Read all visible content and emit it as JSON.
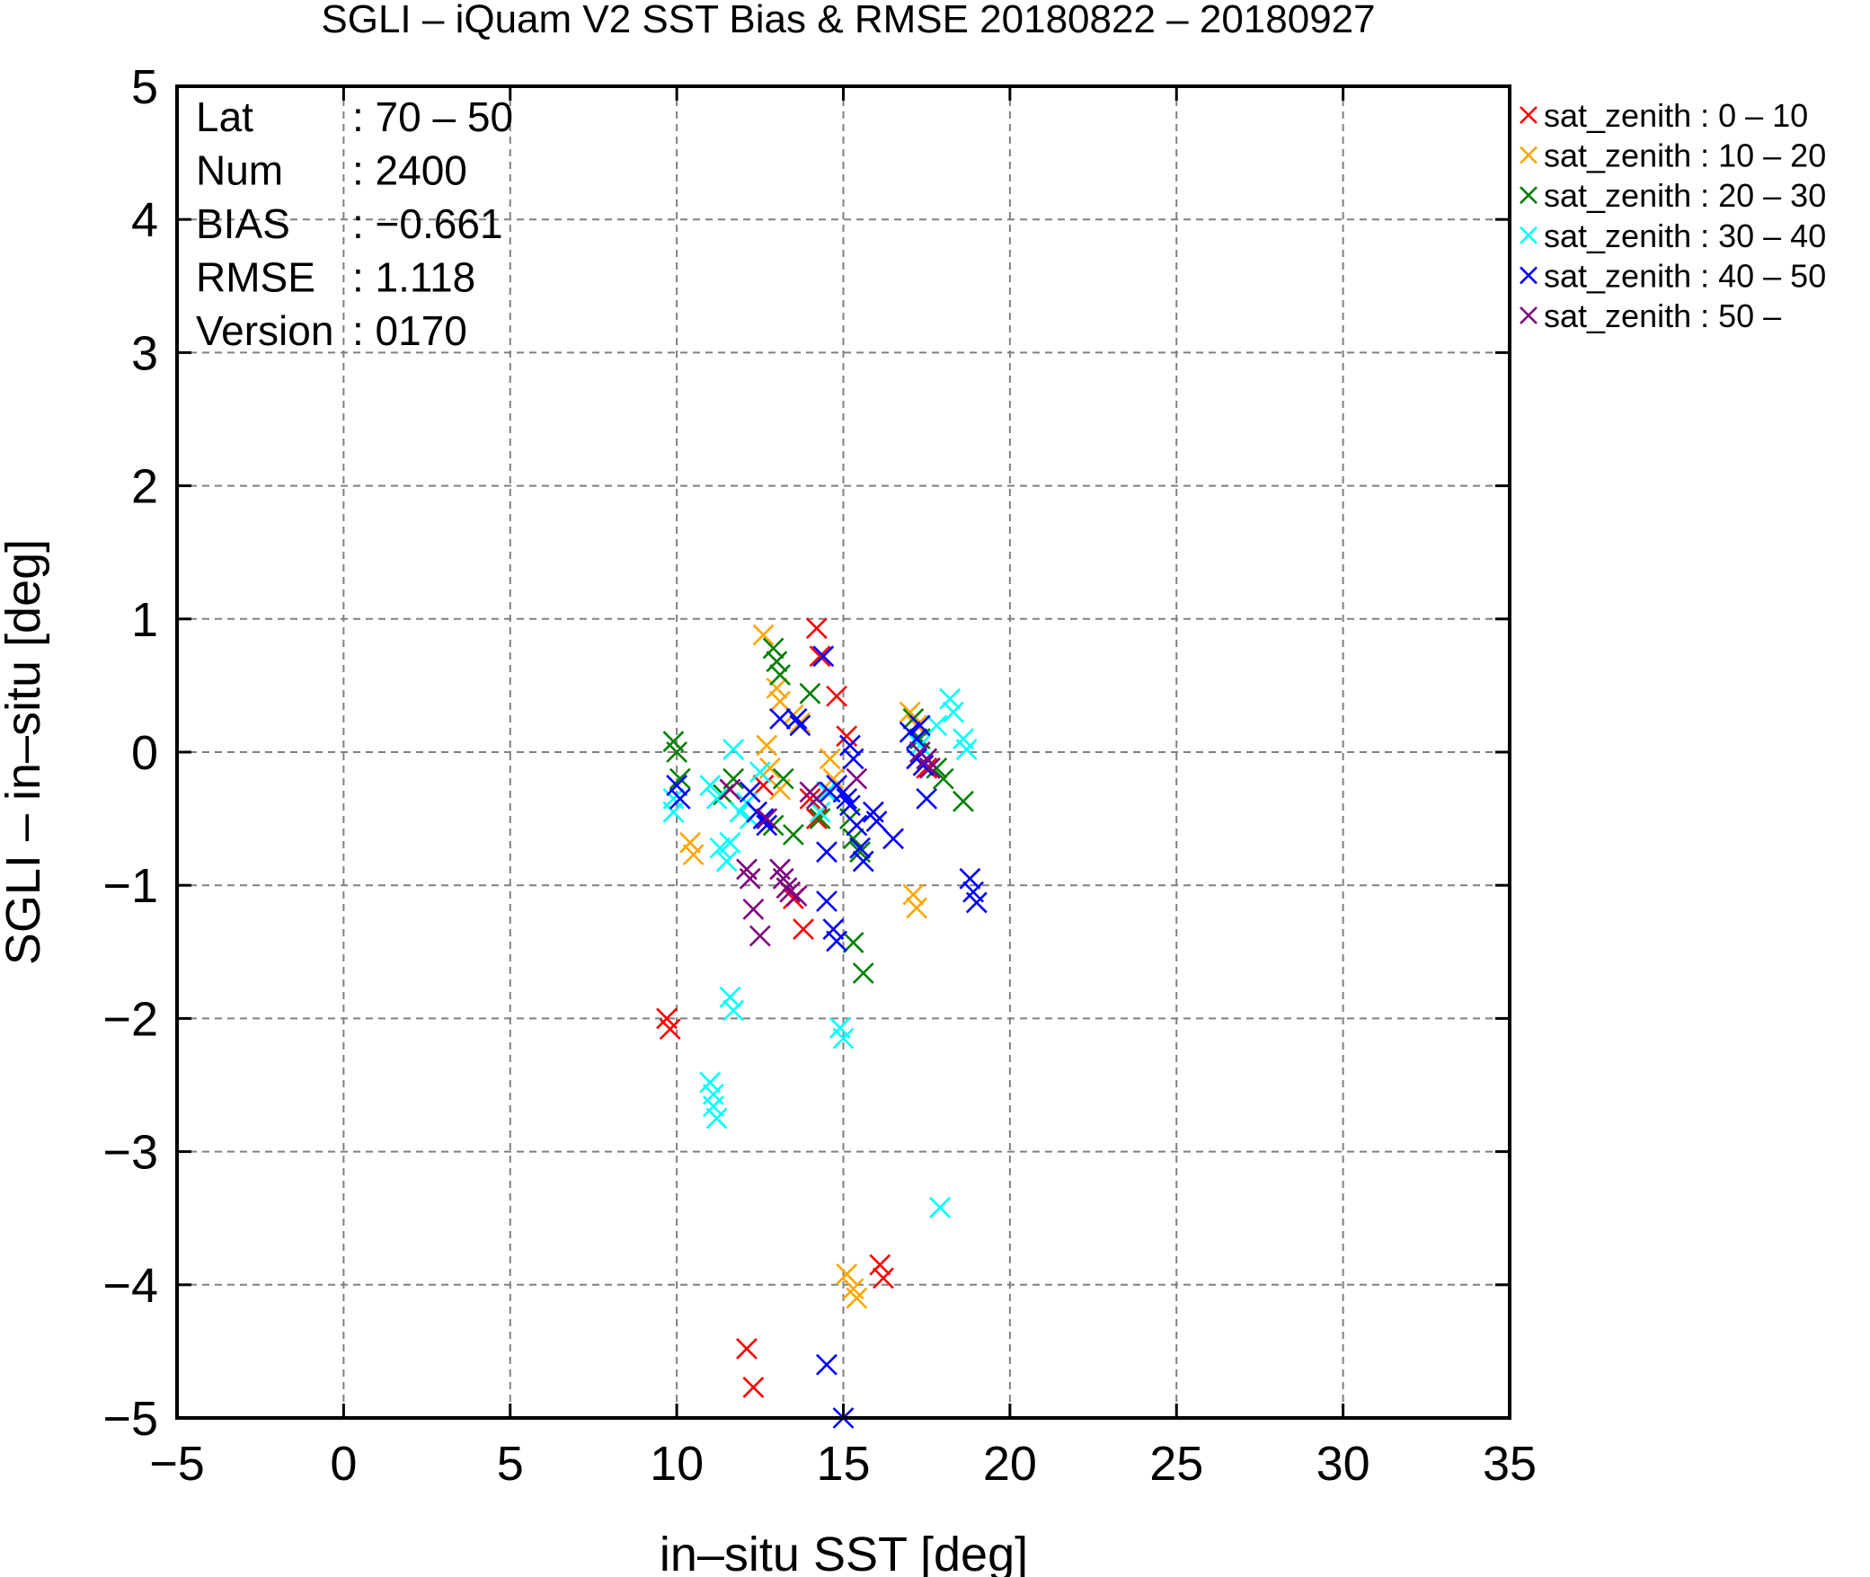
{
  "chart_data": {
    "type": "scatter",
    "title": "SGLI – iQuam V2 SST Bias & RMSE 20180822 – 20180927",
    "xlabel": "in–situ SST [deg]",
    "ylabel": "SGLI – in–situ [deg]",
    "xlim": [
      -5,
      35
    ],
    "ylim": [
      -5,
      5
    ],
    "x_ticks": [
      "−5",
      "0",
      "5",
      "10",
      "15",
      "20",
      "25",
      "30",
      "35"
    ],
    "y_ticks": [
      "5",
      "4",
      "3",
      "2",
      "1",
      "0",
      "−1",
      "−2",
      "−3",
      "−4",
      "−5"
    ],
    "grid": true,
    "legend_position": "outside-right",
    "marker": "x",
    "stats": {
      "labels": [
        "Lat",
        "Num",
        "BIAS",
        "RMSE",
        "Version"
      ],
      "values": [
        ": 70 – 50",
        ": 2400",
        ": −0.661",
        ": 1.118",
        ": 0170"
      ]
    },
    "series": [
      {
        "name": "sat_zenith :  0 – 10",
        "color": "#ff0000",
        "points": [
          [
            9.7,
            -2.0
          ],
          [
            9.8,
            -2.08
          ],
          [
            14.2,
            0.93
          ],
          [
            14.3,
            0.72
          ],
          [
            14.8,
            0.42
          ],
          [
            15.1,
            0.12
          ],
          [
            12.6,
            -0.25
          ],
          [
            11.6,
            -0.28
          ],
          [
            14.0,
            -0.35
          ],
          [
            14.2,
            -0.5
          ],
          [
            13.5,
            -1.1
          ],
          [
            13.8,
            -1.33
          ],
          [
            12.1,
            -4.48
          ],
          [
            12.3,
            -4.77
          ],
          [
            16.1,
            -3.85
          ],
          [
            16.2,
            -3.95
          ],
          [
            17.5,
            -0.12
          ]
        ]
      },
      {
        "name": "sat_zenith : 10 – 20",
        "color": "#ffa500",
        "points": [
          [
            12.6,
            0.88
          ],
          [
            13.0,
            0.48
          ],
          [
            13.1,
            0.38
          ],
          [
            13.5,
            0.28
          ],
          [
            13.7,
            0.22
          ],
          [
            12.7,
            0.05
          ],
          [
            12.8,
            -0.12
          ],
          [
            10.4,
            -0.68
          ],
          [
            10.5,
            -0.77
          ],
          [
            14.6,
            -0.05
          ],
          [
            14.7,
            -0.2
          ],
          [
            15.1,
            -3.92
          ],
          [
            15.3,
            -4.03
          ],
          [
            15.4,
            -4.1
          ],
          [
            17.0,
            0.3
          ],
          [
            17.2,
            0.2
          ],
          [
            17.1,
            -1.07
          ],
          [
            17.2,
            -1.17
          ],
          [
            13.1,
            -0.28
          ]
        ]
      },
      {
        "name": "sat_zenith : 20 – 30",
        "color": "#008000",
        "points": [
          [
            9.9,
            0.08
          ],
          [
            10.0,
            0.0
          ],
          [
            10.1,
            -0.2
          ],
          [
            12.9,
            0.78
          ],
          [
            13.0,
            0.68
          ],
          [
            13.1,
            0.58
          ],
          [
            14.0,
            0.44
          ],
          [
            11.7,
            -0.2
          ],
          [
            11.4,
            -0.32
          ],
          [
            12.9,
            -0.55
          ],
          [
            13.5,
            -0.62
          ],
          [
            15.2,
            -0.5
          ],
          [
            15.3,
            -0.65
          ],
          [
            15.5,
            -0.75
          ],
          [
            15.3,
            -1.43
          ],
          [
            15.6,
            -1.66
          ],
          [
            17.1,
            0.25
          ],
          [
            17.3,
            0.1
          ],
          [
            17.8,
            -0.12
          ],
          [
            18.0,
            -0.2
          ],
          [
            18.6,
            -0.37
          ],
          [
            14.3,
            -0.5
          ],
          [
            13.2,
            -0.2
          ]
        ]
      },
      {
        "name": "sat_zenith : 30 – 40",
        "color": "#00ffff",
        "points": [
          [
            9.9,
            -0.35
          ],
          [
            9.9,
            -0.45
          ],
          [
            11.0,
            -0.25
          ],
          [
            11.2,
            -0.35
          ],
          [
            11.3,
            -0.72
          ],
          [
            11.5,
            -0.82
          ],
          [
            11.6,
            -0.68
          ],
          [
            11.7,
            0.02
          ],
          [
            11.9,
            -0.45
          ],
          [
            12.1,
            -0.38
          ],
          [
            12.2,
            -0.5
          ],
          [
            11.6,
            -1.84
          ],
          [
            11.7,
            -1.94
          ],
          [
            11.0,
            -2.48
          ],
          [
            11.1,
            -2.57
          ],
          [
            11.1,
            -2.66
          ],
          [
            11.2,
            -2.75
          ],
          [
            14.3,
            -0.45
          ],
          [
            14.5,
            -0.3
          ],
          [
            14.9,
            -2.07
          ],
          [
            15.0,
            -2.15
          ],
          [
            17.9,
            -3.42
          ],
          [
            17.5,
            -0.05
          ],
          [
            17.8,
            0.2
          ],
          [
            18.2,
            0.4
          ],
          [
            18.3,
            0.3
          ],
          [
            18.6,
            0.1
          ],
          [
            18.7,
            0.02
          ],
          [
            17.3,
            0.05
          ],
          [
            12.5,
            -0.15
          ]
        ]
      },
      {
        "name": "sat_zenith : 40 – 50",
        "color": "#0000ff",
        "points": [
          [
            10.0,
            -0.25
          ],
          [
            10.1,
            -0.35
          ],
          [
            12.2,
            -0.3
          ],
          [
            12.4,
            -0.45
          ],
          [
            12.6,
            -0.5
          ],
          [
            12.7,
            -0.55
          ],
          [
            13.1,
            0.25
          ],
          [
            13.6,
            0.25
          ],
          [
            13.7,
            0.2
          ],
          [
            14.4,
            0.72
          ],
          [
            14.6,
            -0.3
          ],
          [
            14.8,
            -0.25
          ],
          [
            15.0,
            -0.3
          ],
          [
            15.1,
            -0.35
          ],
          [
            15.2,
            -0.4
          ],
          [
            15.2,
            0.05
          ],
          [
            15.3,
            -0.05
          ],
          [
            14.5,
            -0.75
          ],
          [
            14.5,
            -1.12
          ],
          [
            14.7,
            -1.33
          ],
          [
            14.8,
            -1.42
          ],
          [
            15.4,
            -0.55
          ],
          [
            15.5,
            -0.72
          ],
          [
            15.6,
            -0.82
          ],
          [
            15.9,
            -0.45
          ],
          [
            16.0,
            -0.52
          ],
          [
            16.5,
            -0.65
          ],
          [
            17.0,
            0.15
          ],
          [
            17.2,
            0.1
          ],
          [
            17.3,
            0.2
          ],
          [
            17.4,
            -0.1
          ],
          [
            17.5,
            -0.35
          ],
          [
            18.8,
            -0.95
          ],
          [
            18.9,
            -1.05
          ],
          [
            19.0,
            -1.13
          ],
          [
            14.5,
            -4.6
          ],
          [
            15.0,
            -5.0
          ],
          [
            17.2,
            -0.05
          ]
        ]
      },
      {
        "name": "sat_zenith : 50 –",
        "color": "#800080",
        "points": [
          [
            11.6,
            -0.28
          ],
          [
            12.1,
            -0.88
          ],
          [
            12.2,
            -0.95
          ],
          [
            12.3,
            -1.18
          ],
          [
            12.5,
            -1.38
          ],
          [
            12.7,
            -0.5
          ],
          [
            13.1,
            -0.88
          ],
          [
            13.2,
            -0.95
          ],
          [
            13.3,
            -1.02
          ],
          [
            13.4,
            -1.05
          ],
          [
            13.6,
            -1.08
          ],
          [
            14.0,
            -0.3
          ],
          [
            14.2,
            -0.35
          ],
          [
            15.4,
            -0.2
          ],
          [
            17.3,
            0.0
          ],
          [
            17.5,
            -0.05
          ],
          [
            17.6,
            -0.12
          ]
        ]
      }
    ]
  }
}
